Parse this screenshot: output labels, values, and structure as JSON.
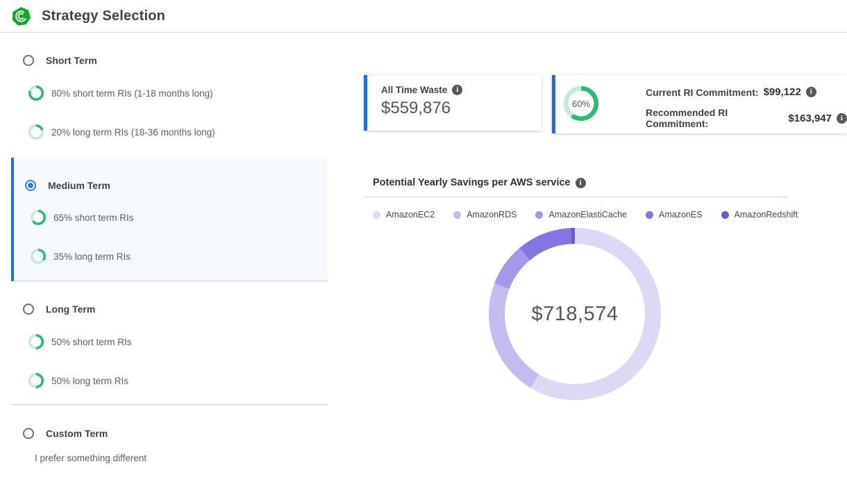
{
  "header": {
    "title": "Strategy Selection"
  },
  "colors": {
    "accent_blue": "#1e6fde",
    "ring_green": "#2db873",
    "ring_green_light": "#c3ecd5",
    "radio_selected": "#2b7ce8",
    "logo_green": "#17a72e"
  },
  "strategies": [
    {
      "label": "Short Term",
      "selected": false,
      "options": [
        {
          "percent": 80,
          "label": "80% short term RIs (1-18 months long)"
        },
        {
          "percent": 20,
          "label": "20% long term RIs (18-36 months long)"
        }
      ]
    },
    {
      "label": "Medium Term",
      "selected": true,
      "options": [
        {
          "percent": 65,
          "label": "65% short term RIs"
        },
        {
          "percent": 35,
          "label": "35% long term RIs"
        }
      ]
    },
    {
      "label": "Long Term",
      "selected": false,
      "options": [
        {
          "percent": 50,
          "label": "50% short term RIs"
        },
        {
          "percent": 50,
          "label": "50% long term RIs"
        }
      ]
    },
    {
      "label": "Custom Term",
      "selected": false,
      "description": "I prefer something different"
    }
  ],
  "cards": {
    "waste": {
      "title": "All Time Waste",
      "value": "$559,876"
    },
    "commitment": {
      "percent": 60,
      "percent_label": "60%",
      "current_label": "Current RI Commitment:",
      "current_value": "$99,122",
      "recommended_label": "Recommended RI Commitment:",
      "recommended_value": "$163,947"
    }
  },
  "chart_data": {
    "type": "pie",
    "donut": true,
    "title": "Potential Yearly Savings per AWS service",
    "center_label": "$718,574",
    "total_value": 718574,
    "legend_position": "top",
    "series": [
      {
        "name": "AmazonEC2",
        "percent": 58.6,
        "color": "#dcd8f6"
      },
      {
        "name": "AmazonRDS",
        "percent": 22.2,
        "color": "#c5bbf0"
      },
      {
        "name": "AmazonElastiCache",
        "percent": 8.1,
        "color": "#a698e9"
      },
      {
        "name": "AmazonES",
        "percent": 10.3,
        "color": "#8375e3"
      },
      {
        "name": "AmazonRedshift",
        "percent": 0.8,
        "color": "#6a57de"
      }
    ]
  }
}
